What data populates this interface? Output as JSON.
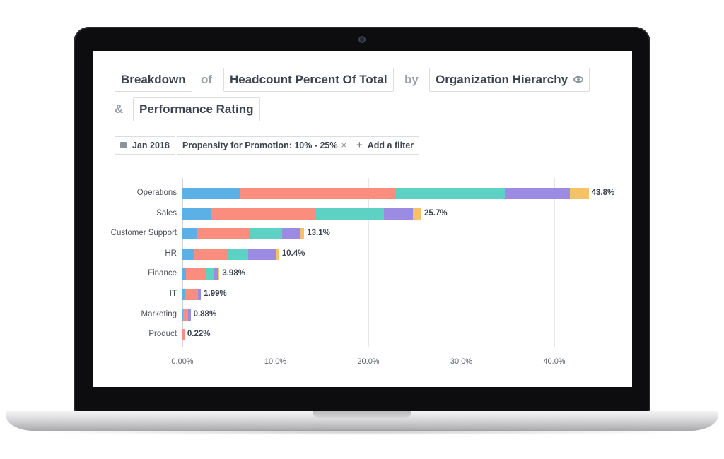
{
  "query": {
    "measure_prefix": "Breakdown",
    "of_word": "of",
    "metric": "Headcount Percent Of Total",
    "by_word": "by",
    "dimension1": "Organization Hierarchy",
    "and_word": "&",
    "dimension2": "Performance Rating"
  },
  "filters": {
    "date": "Jan 2018",
    "propensity": "Propensity for Promotion: 10% - 25%",
    "propensity_remove": "×",
    "add_icon": "+",
    "add_label": "Add a filter"
  },
  "colors": {
    "seg1": "#5bb0e6",
    "seg2": "#fb8d7f",
    "seg3": "#5cd1c4",
    "seg4": "#9b8be3",
    "seg5": "#f7c167"
  },
  "chart_data": {
    "type": "bar",
    "orientation": "horizontal",
    "stacked": true,
    "categories": [
      "Operations",
      "Sales",
      "Customer Support",
      "HR",
      "Finance",
      "IT",
      "Marketing",
      "Product"
    ],
    "totals": [
      "43.8%",
      "25.7%",
      "13.1%",
      "10.4%",
      "3.98%",
      "1.99%",
      "0.88%",
      "0.22%"
    ],
    "segments": [
      [
        6.2,
        16.8,
        11.7,
        7.0,
        2.0
      ],
      [
        3.1,
        11.3,
        7.3,
        3.1,
        0.9
      ],
      [
        1.6,
        5.6,
        3.5,
        2.0,
        0.4
      ],
      [
        1.3,
        3.6,
        2.2,
        3.0,
        0.3
      ],
      [
        0.4,
        2.1,
        0.9,
        0.5,
        0.08
      ],
      [
        0.2,
        1.3,
        0.2,
        0.29,
        0.0
      ],
      [
        0.1,
        0.4,
        0.1,
        0.28,
        0.0
      ],
      [
        0.02,
        0.18,
        0.0,
        0.02,
        0.0
      ]
    ],
    "xlim": [
      0,
      45
    ],
    "xticks": [
      "0.00%",
      "10.0%",
      "20.0%",
      "30.0%",
      "40.0%"
    ],
    "xtick_values": [
      0,
      10,
      20,
      30,
      40
    ],
    "grid": true
  }
}
